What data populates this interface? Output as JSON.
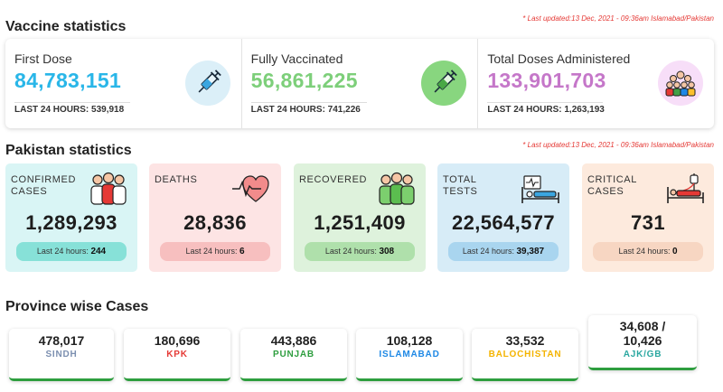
{
  "vaccine": {
    "heading": "Vaccine statistics",
    "updated": "* Last updated:13 Dec, 2021 - 09:36am Islamabad/Pakistan",
    "items": [
      {
        "label": "First Dose",
        "value": "84,783,151",
        "sub": "LAST 24 HOURS: 539,918",
        "color": "#29b6e8",
        "icon": "syringe-icon"
      },
      {
        "label": "Fully Vaccinated",
        "value": "56,861,225",
        "sub": "LAST 24 HOURS: 741,226",
        "color": "#7dcf7a",
        "icon": "syringe-icon"
      },
      {
        "label": "Total Doses Administered",
        "value": "133,901,703",
        "sub": "LAST 24 HOURS: 1,263,193",
        "color": "#c577c9",
        "icon": "crowd-icon"
      }
    ]
  },
  "pakistan": {
    "heading": "Pakistan statistics",
    "updated": "* Last updated:13 Dec, 2021 - 09:36am Islamabad/Pakistan",
    "pill_prefix": "Last 24 hours:",
    "cards": [
      {
        "title": "CONFIRMED\nCASES",
        "value": "1,289,293",
        "last24": "244",
        "bg": "#d9f5f5",
        "pill": "#87e1d8",
        "icon": "people-icon"
      },
      {
        "title": "DEATHS",
        "value": "28,836",
        "last24": "6",
        "bg": "#fde4e4",
        "pill": "#f7bfbf",
        "icon": "heart-pulse-icon"
      },
      {
        "title": "RECOVERED",
        "value": "1,251,409",
        "last24": "308",
        "bg": "#def2dc",
        "pill": "#afe0ab",
        "icon": "recovered-people-icon"
      },
      {
        "title": "TOTAL\nTESTS",
        "value": "22,564,577",
        "last24": "39,387",
        "bg": "#d7ecf7",
        "pill": "#a9d5ef",
        "icon": "hospital-bed-icon"
      },
      {
        "title": "CRITICAL\nCASES",
        "value": "731",
        "last24": "0",
        "bg": "#fdeadd",
        "pill": "#f7d6c2",
        "icon": "icu-bed-icon"
      }
    ]
  },
  "provinces": {
    "heading": "Province wise Cases",
    "items": [
      {
        "value": "478,017",
        "name": "SINDH",
        "color": "#7b8fb0"
      },
      {
        "value": "180,696",
        "name": "KPK",
        "color": "#e53935"
      },
      {
        "value": "443,886",
        "name": "PUNJAB",
        "color": "#2e9e3f"
      },
      {
        "value": "108,128",
        "name": "ISLAMABAD",
        "color": "#1e88e5"
      },
      {
        "value": "33,532",
        "name": "BALOCHISTAN",
        "color": "#f4b400"
      },
      {
        "value": "34,608 /\n10,426",
        "name": "AJK/GB",
        "color": "#2aa7a0"
      }
    ]
  }
}
